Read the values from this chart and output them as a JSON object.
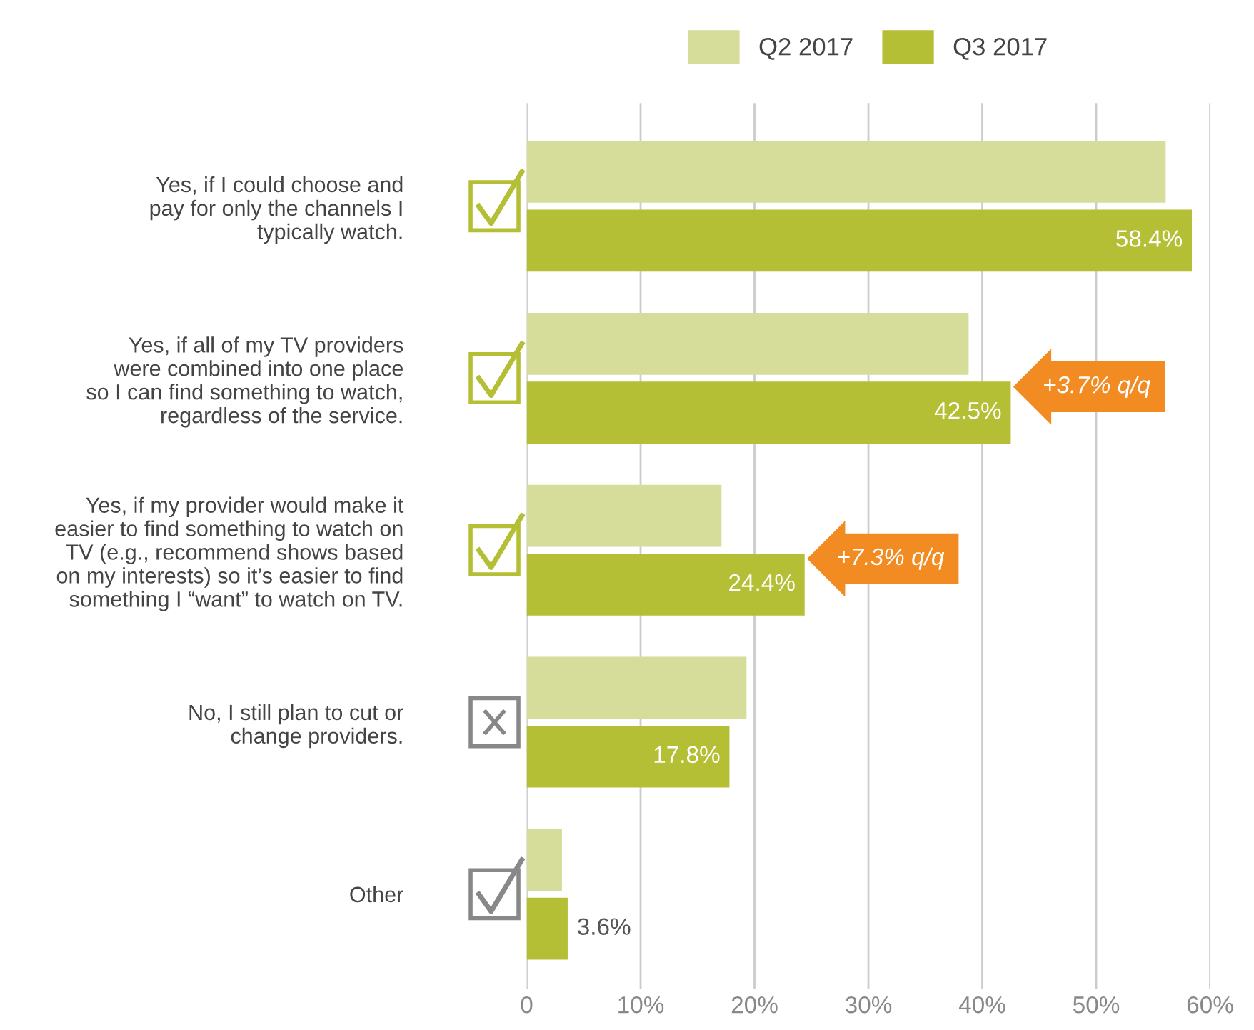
{
  "chart_data": {
    "type": "bar",
    "orientation": "horizontal",
    "categories": [
      "Yes, if I could choose and\npay for only the channels I\ntypically watch.",
      "Yes, if all of my TV providers\nwere combined into one place\nso I can find something to watch,\nregardless of the service.",
      "Yes, if my provider would make it\neasier to find something to watch on\nTV (e.g., recommend shows based\non my interests) so it’s easier to find\nsomething I “want” to watch on TV.",
      "No, I still plan to cut or\nchange providers.",
      "Other"
    ],
    "series": [
      {
        "name": "Q2 2017",
        "color": "#d6dc9a",
        "values": [
          56.1,
          38.8,
          17.1,
          19.3,
          3.1
        ]
      },
      {
        "name": "Q3 2017",
        "color": "#b5bf35",
        "values": [
          58.4,
          42.5,
          24.4,
          17.8,
          3.6
        ],
        "value_labels": [
          "58.4%",
          "42.5%",
          "24.4%",
          "17.8%",
          "3.6%"
        ]
      }
    ],
    "xlim": [
      0,
      60
    ],
    "xticks": [
      0,
      {
        "value": 10,
        "label": "10%"
      },
      {
        "value": 20,
        "label": "20%"
      },
      {
        "value": 30,
        "label": "30%"
      },
      {
        "value": 40,
        "label": "40%"
      },
      {
        "value": 50,
        "label": "50%"
      },
      {
        "value": 60,
        "label": "60%"
      }
    ],
    "grid": "x",
    "legend": "top",
    "annotations": [
      {
        "text": "+3.7% q/q",
        "x": 42.5,
        "y": "Yes, if all of my TV providers\nwere combined into one place\nso I can find something to watch,\nregardless of the service."
      },
      {
        "text": "+7.3% q/q",
        "x": 24.4,
        "y": "Yes, if my provider would make it\neasier to find something to watch on\nTV (e.g., recommend shows based\non my interests) so it’s easier to find\nsomething I “want” to watch on TV."
      }
    ]
  }
}
